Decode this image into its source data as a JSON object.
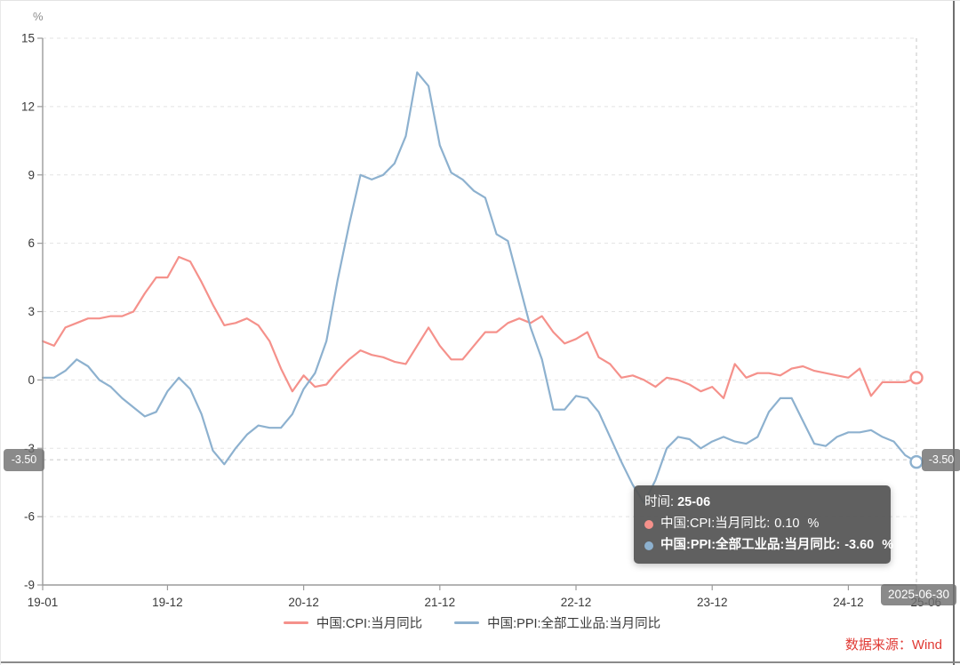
{
  "page": {
    "unit": "%",
    "source": "数据来源：Wind"
  },
  "axis": {
    "y_ticks": [
      15,
      12,
      9,
      6,
      3,
      0,
      -3,
      -6,
      -9
    ],
    "x_ticks": [
      {
        "index": 0,
        "label": "19-01"
      },
      {
        "index": 11,
        "label": "19-12"
      },
      {
        "index": 23,
        "label": "20-12"
      },
      {
        "index": 35,
        "label": "21-12"
      },
      {
        "index": 47,
        "label": "22-12"
      },
      {
        "index": 59,
        "label": "23-12"
      },
      {
        "index": 71,
        "label": "24-12"
      },
      {
        "index": 77,
        "label": "25-06"
      }
    ]
  },
  "axis_pointer": {
    "hover_index": 77,
    "hover_value": -3.5,
    "y_badge": "-3.50",
    "x_badge": "2025-06-30"
  },
  "tooltip": {
    "time_label": "时间:",
    "time_value": "25-06",
    "rows": [
      {
        "name": "中国:CPI:当月同比:",
        "value": "0.10",
        "unit": "%",
        "color": "#f5918b",
        "bold": false
      },
      {
        "name": "中国:PPI:全部工业品:当月同比:",
        "value": "-3.60",
        "unit": "%",
        "color": "#8db1cf",
        "bold": true
      }
    ]
  },
  "legend": [
    {
      "label": "中国:CPI:当月同比",
      "color": "#f5918b"
    },
    {
      "label": "中国:PPI:全部工业品:当月同比",
      "color": "#8db1cf"
    }
  ],
  "chart_data": {
    "type": "line",
    "title": "",
    "xlabel": "",
    "ylabel": "%",
    "ylim": [
      -9,
      15
    ],
    "y_tick_step": 3,
    "grid": "horizontal-dashed",
    "legend_position": "bottom",
    "x_range": [
      "2019-01",
      "2025-06"
    ],
    "x_tick_labels": [
      "19-01",
      "19-12",
      "20-12",
      "21-12",
      "22-12",
      "23-12",
      "24-12",
      "25-06"
    ],
    "end_markers": true,
    "series": [
      {
        "name": "中国:CPI:当月同比",
        "color": "#f5918b",
        "values": [
          1.7,
          1.5,
          2.3,
          2.5,
          2.7,
          2.7,
          2.8,
          2.8,
          3.0,
          3.8,
          4.5,
          4.5,
          5.4,
          5.2,
          4.3,
          3.3,
          2.4,
          2.5,
          2.7,
          2.4,
          1.7,
          0.5,
          -0.5,
          0.2,
          -0.3,
          -0.2,
          0.4,
          0.9,
          1.3,
          1.1,
          1.0,
          0.8,
          0.7,
          1.5,
          2.3,
          1.5,
          0.9,
          0.9,
          1.5,
          2.1,
          2.1,
          2.5,
          2.7,
          2.5,
          2.8,
          2.1,
          1.6,
          1.8,
          2.1,
          1.0,
          0.7,
          0.1,
          0.2,
          0.0,
          -0.3,
          0.1,
          0.0,
          -0.2,
          -0.5,
          -0.3,
          -0.8,
          0.7,
          0.1,
          0.3,
          0.3,
          0.2,
          0.5,
          0.6,
          0.4,
          0.3,
          0.2,
          0.1,
          0.5,
          -0.7,
          -0.1,
          -0.1,
          -0.1,
          0.1
        ]
      },
      {
        "name": "中国:PPI:全部工业品:当月同比",
        "color": "#8db1cf",
        "values": [
          0.1,
          0.1,
          0.4,
          0.9,
          0.6,
          0.0,
          -0.3,
          -0.8,
          -1.2,
          -1.6,
          -1.4,
          -0.5,
          0.1,
          -0.4,
          -1.5,
          -3.1,
          -3.7,
          -3.0,
          -2.4,
          -2.0,
          -2.1,
          -2.1,
          -1.5,
          -0.4,
          0.3,
          1.7,
          4.4,
          6.8,
          9.0,
          8.8,
          9.0,
          9.5,
          10.7,
          13.5,
          12.9,
          10.3,
          9.1,
          8.8,
          8.3,
          8.0,
          6.4,
          6.1,
          4.2,
          2.3,
          0.9,
          -1.3,
          -1.3,
          -0.7,
          -0.8,
          -1.4,
          -2.5,
          -3.6,
          -4.6,
          -5.4,
          -4.4,
          -3.0,
          -2.5,
          -2.6,
          -3.0,
          -2.7,
          -2.5,
          -2.7,
          -2.8,
          -2.5,
          -1.4,
          -0.8,
          -0.8,
          -1.8,
          -2.8,
          -2.9,
          -2.5,
          -2.3,
          -2.3,
          -2.2,
          -2.5,
          -2.7,
          -3.3,
          -3.6
        ]
      }
    ]
  }
}
